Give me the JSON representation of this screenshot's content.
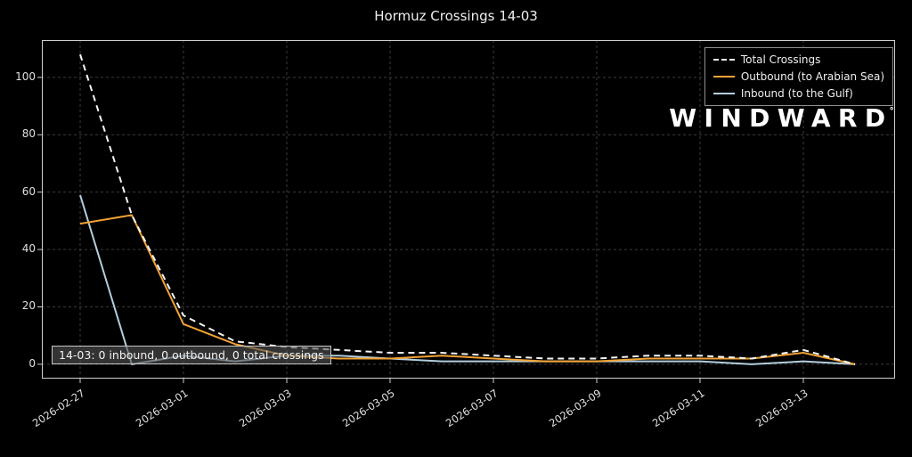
{
  "title": "Hormuz Crossings 14-03",
  "logo": {
    "text": "WINDWARD",
    "mark": "°"
  },
  "tooltip": {
    "text": "14-03: 0 inbound, 0 outbound, 0 total crossings"
  },
  "legend": {
    "items": [
      {
        "label": "Total Crossings",
        "color": "#f5f5f5",
        "style": "dashed"
      },
      {
        "label": "Outbound (to Arabian Sea)",
        "color": "#f2a234",
        "style": "solid"
      },
      {
        "label": "Inbound (to the Gulf)",
        "color": "#b3cedd",
        "style": "solid"
      }
    ]
  },
  "chart_data": {
    "type": "line",
    "title": "Hormuz Crossings 14-03",
    "x": [
      "2026-02-27",
      "2026-02-28",
      "2026-03-01",
      "2026-03-02",
      "2026-03-03",
      "2026-03-04",
      "2026-03-05",
      "2026-03-06",
      "2026-03-07",
      "2026-03-08",
      "2026-03-09",
      "2026-03-10",
      "2026-03-11",
      "2026-03-12",
      "2026-03-13",
      "2026-03-14"
    ],
    "series": [
      {
        "id": "total",
        "name": "Total Crossings",
        "color": "#f5f5f5",
        "dash": "7 5",
        "values": [
          108,
          52,
          17,
          8,
          6,
          5,
          4,
          4,
          3,
          2,
          2,
          3,
          3,
          2,
          5,
          0
        ]
      },
      {
        "id": "outbound",
        "name": "Outbound (to Arabian Sea)",
        "color": "#f2a234",
        "dash": "",
        "values": [
          49,
          52,
          14,
          7,
          3,
          2,
          2,
          3,
          2,
          1,
          1,
          2,
          2,
          2,
          4,
          0
        ]
      },
      {
        "id": "inbound",
        "name": "Inbound (to the Gulf)",
        "color": "#b3cedd",
        "dash": "",
        "values": [
          59,
          0,
          3,
          1,
          3,
          3,
          2,
          1,
          1,
          1,
          1,
          1,
          1,
          0,
          1,
          0
        ]
      }
    ],
    "xticks": [
      "2026-02-27",
      "2026-03-01",
      "2026-03-03",
      "2026-03-05",
      "2026-03-07",
      "2026-03-09",
      "2026-03-11",
      "2026-03-13"
    ],
    "yticks": [
      0,
      20,
      40,
      60,
      80,
      100
    ],
    "ylim": [
      -5,
      113
    ],
    "grid": true,
    "legend_position": "upper right"
  }
}
